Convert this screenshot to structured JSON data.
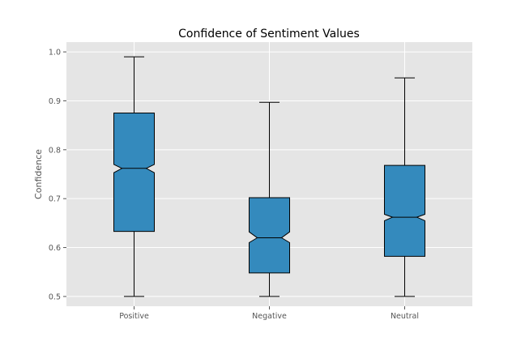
{
  "chart_data": {
    "type": "boxplot",
    "title": "Confidence of Sentiment Values",
    "xlabel": "",
    "ylabel": "Confidence",
    "ylim": [
      0.48,
      1.02
    ],
    "yticks": [
      0.5,
      0.6,
      0.7,
      0.8,
      0.9,
      1.0
    ],
    "ytick_labels": [
      "0.5",
      "0.6",
      "0.7",
      "0.8",
      "0.9",
      "1.0"
    ],
    "grid": true,
    "notched": true,
    "box_color": "#348abd",
    "background_color": "#e5e5e5",
    "categories": [
      "Positive",
      "Negative",
      "Neutral"
    ],
    "boxes": [
      {
        "whislo": 0.5,
        "q1": 0.633,
        "med": 0.762,
        "q3": 0.875,
        "whishi": 0.99,
        "cilo": 0.753,
        "cihi": 0.77
      },
      {
        "whislo": 0.5,
        "q1": 0.548,
        "med": 0.62,
        "q3": 0.702,
        "whishi": 0.897,
        "cilo": 0.61,
        "cihi": 0.632
      },
      {
        "whislo": 0.5,
        "q1": 0.582,
        "med": 0.662,
        "q3": 0.768,
        "whishi": 0.947,
        "cilo": 0.655,
        "cihi": 0.668
      }
    ]
  }
}
